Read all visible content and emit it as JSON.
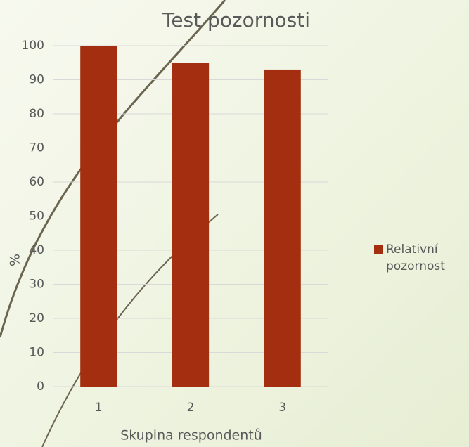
{
  "chart_data": {
    "type": "bar",
    "title": "Test pozornosti",
    "x_label": "Skupina respondentů",
    "y_label": "%",
    "categories": [
      "1",
      "2",
      "3"
    ],
    "series": [
      {
        "name": "Relativní pozornost",
        "color": "#a32f10",
        "values": [
          100,
          95,
          93
        ]
      }
    ],
    "ylim": [
      0,
      100
    ],
    "yticks": [
      0,
      10,
      20,
      30,
      40,
      50,
      60,
      70,
      80,
      90,
      100
    ],
    "grid": true,
    "legend": "right"
  }
}
